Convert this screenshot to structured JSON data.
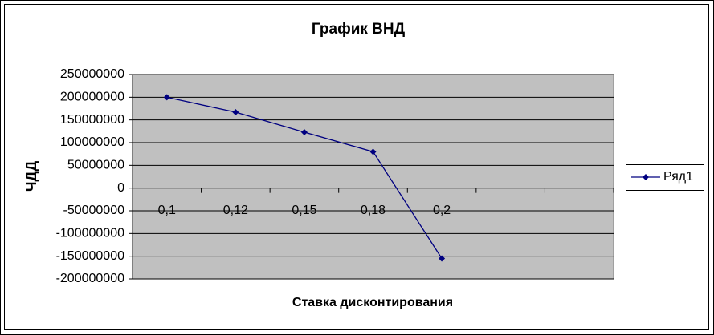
{
  "chart_data": {
    "type": "line",
    "title": "График ВНД",
    "x_label": "Ставка дисконтирования",
    "y_label": "ЧДД",
    "categories": [
      "0,1",
      "0,12",
      "0,15",
      "0,18",
      "0,2",
      null,
      null
    ],
    "series": [
      {
        "name": "Ряд1",
        "color": "#000080",
        "values": [
          200000000,
          167000000,
          123000000,
          80000000,
          -155000000,
          null,
          null
        ]
      }
    ],
    "ylim": [
      -200000000,
      250000000
    ],
    "yticks": [
      -200000000,
      -150000000,
      -100000000,
      -50000000,
      0,
      50000000,
      100000000,
      150000000,
      200000000,
      250000000
    ],
    "grid": true,
    "legend": "right"
  }
}
